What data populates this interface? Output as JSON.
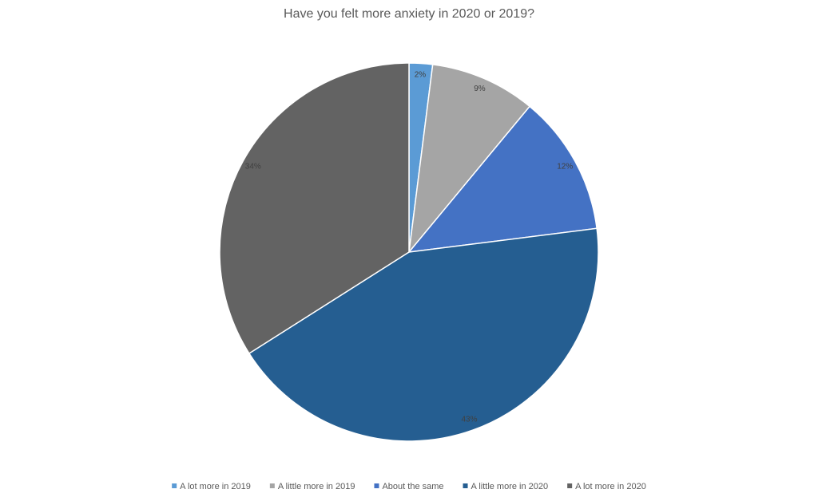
{
  "chart_data": {
    "type": "pie",
    "title": "Have you felt more anxiety in 2020 or 2019?",
    "categories": [
      "A lot more in 2019",
      "A little more in 2019",
      "About the same",
      "A little more in 2020",
      "A lot more in 2020"
    ],
    "values": [
      2,
      9,
      12,
      43,
      34
    ],
    "value_labels": [
      "2%",
      "9%",
      "12%",
      "43%",
      "34%"
    ],
    "colors": [
      "#5b9bd5",
      "#a5a5a5",
      "#4472c4",
      "#255e91",
      "#636363"
    ],
    "legend": "bottom"
  }
}
